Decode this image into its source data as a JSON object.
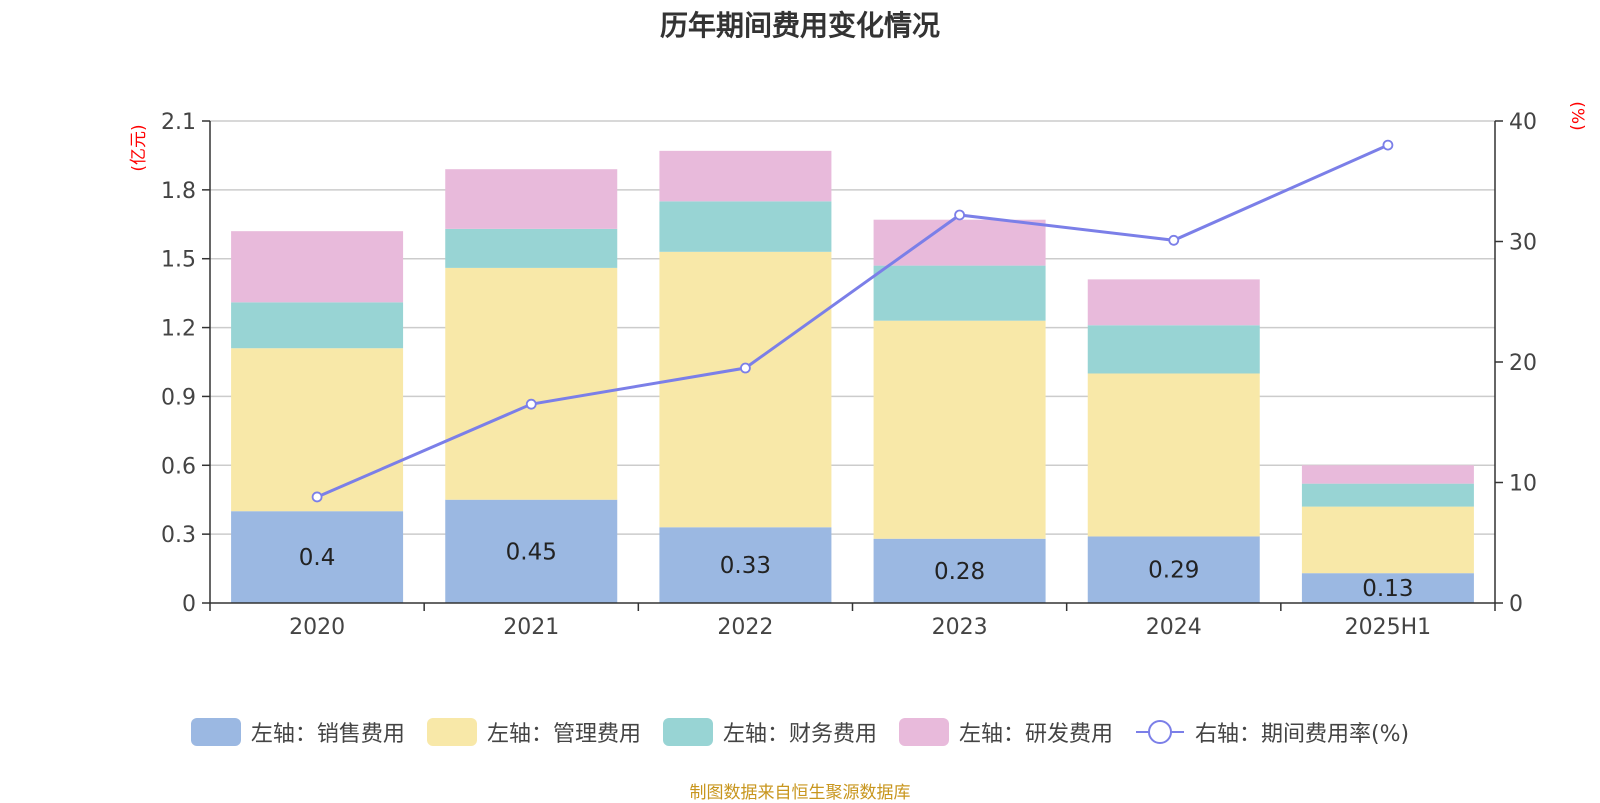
{
  "chart_data": {
    "type": "bar",
    "title": "历年期间费用变化情况",
    "categories": [
      "2020",
      "2021",
      "2022",
      "2023",
      "2024",
      "2025H1"
    ],
    "left_axis": {
      "unit": "(亿元)",
      "ylim": [
        0,
        2.1
      ],
      "ticks": [
        0,
        0.3,
        0.6,
        0.9,
        1.2,
        1.5,
        1.8,
        2.1
      ]
    },
    "right_axis": {
      "unit": "(%)",
      "ylim": [
        0,
        40
      ],
      "ticks": [
        0,
        10,
        20,
        30,
        40
      ]
    },
    "grid": true,
    "legend_position": "bottom",
    "series": [
      {
        "name": "左轴：销售费用",
        "axis": "left",
        "stack": "cost",
        "color": "#9bb8e2",
        "values": [
          0.4,
          0.45,
          0.33,
          0.28,
          0.29,
          0.13
        ],
        "show_labels": true
      },
      {
        "name": "左轴：管理费用",
        "axis": "left",
        "stack": "cost",
        "color": "#f8e8a8",
        "values": [
          0.71,
          1.01,
          1.2,
          0.95,
          0.71,
          0.29
        ]
      },
      {
        "name": "左轴：财务费用",
        "axis": "left",
        "stack": "cost",
        "color": "#98d4d4",
        "values": [
          0.2,
          0.17,
          0.22,
          0.24,
          0.21,
          0.1
        ]
      },
      {
        "name": "左轴：研发费用",
        "axis": "left",
        "stack": "cost",
        "color": "#e8badb",
        "values": [
          0.31,
          0.26,
          0.22,
          0.2,
          0.2,
          0.08
        ]
      },
      {
        "name": "右轴：期间费用率(%)",
        "axis": "right",
        "type": "line",
        "color": "#7b7fe8",
        "values": [
          8.8,
          16.5,
          19.5,
          32.2,
          30.1,
          38.0
        ]
      }
    ]
  },
  "source_note": "制图数据来自恒生聚源数据库"
}
